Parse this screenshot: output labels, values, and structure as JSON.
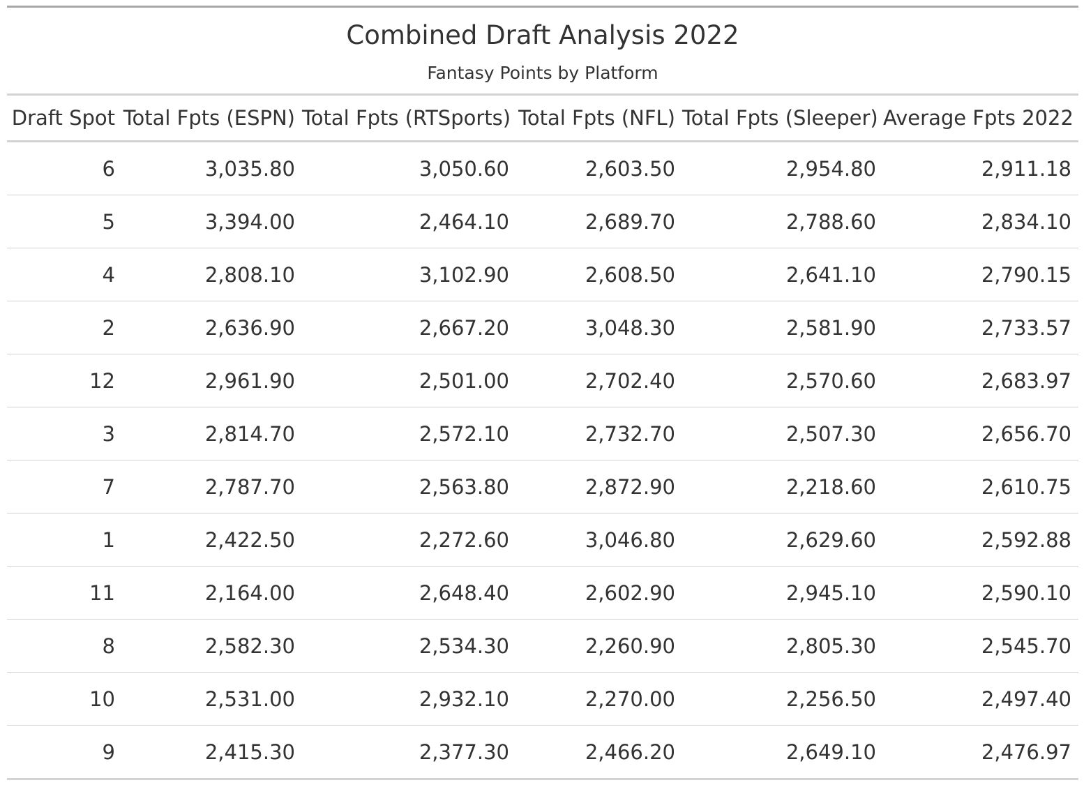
{
  "chart_data": {
    "type": "table",
    "title": "Combined Draft Analysis 2022",
    "subtitle": "Fantasy Points by Platform",
    "columns": [
      "Draft Spot",
      "Total Fpts (ESPN)",
      "Total Fpts (RTSports)",
      "Total Fpts (NFL)",
      "Total Fpts (Sleeper)",
      "Average Fpts 2022"
    ],
    "rows": [
      [
        "6",
        "3,035.80",
        "3,050.60",
        "2,603.50",
        "2,954.80",
        "2,911.18"
      ],
      [
        "5",
        "3,394.00",
        "2,464.10",
        "2,689.70",
        "2,788.60",
        "2,834.10"
      ],
      [
        "4",
        "2,808.10",
        "3,102.90",
        "2,608.50",
        "2,641.10",
        "2,790.15"
      ],
      [
        "2",
        "2,636.90",
        "2,667.20",
        "3,048.30",
        "2,581.90",
        "2,733.57"
      ],
      [
        "12",
        "2,961.90",
        "2,501.00",
        "2,702.40",
        "2,570.60",
        "2,683.97"
      ],
      [
        "3",
        "2,814.70",
        "2,572.10",
        "2,732.70",
        "2,507.30",
        "2,656.70"
      ],
      [
        "7",
        "2,787.70",
        "2,563.80",
        "2,872.90",
        "2,218.60",
        "2,610.75"
      ],
      [
        "1",
        "2,422.50",
        "2,272.60",
        "3,046.80",
        "2,629.60",
        "2,592.88"
      ],
      [
        "11",
        "2,164.00",
        "2,648.40",
        "2,602.90",
        "2,945.10",
        "2,590.10"
      ],
      [
        "8",
        "2,582.30",
        "2,534.30",
        "2,260.90",
        "2,805.30",
        "2,545.70"
      ],
      [
        "10",
        "2,531.00",
        "2,932.10",
        "2,270.00",
        "2,256.50",
        "2,497.40"
      ],
      [
        "9",
        "2,415.30",
        "2,377.30",
        "2,466.20",
        "2,649.10",
        "2,476.97"
      ]
    ]
  }
}
